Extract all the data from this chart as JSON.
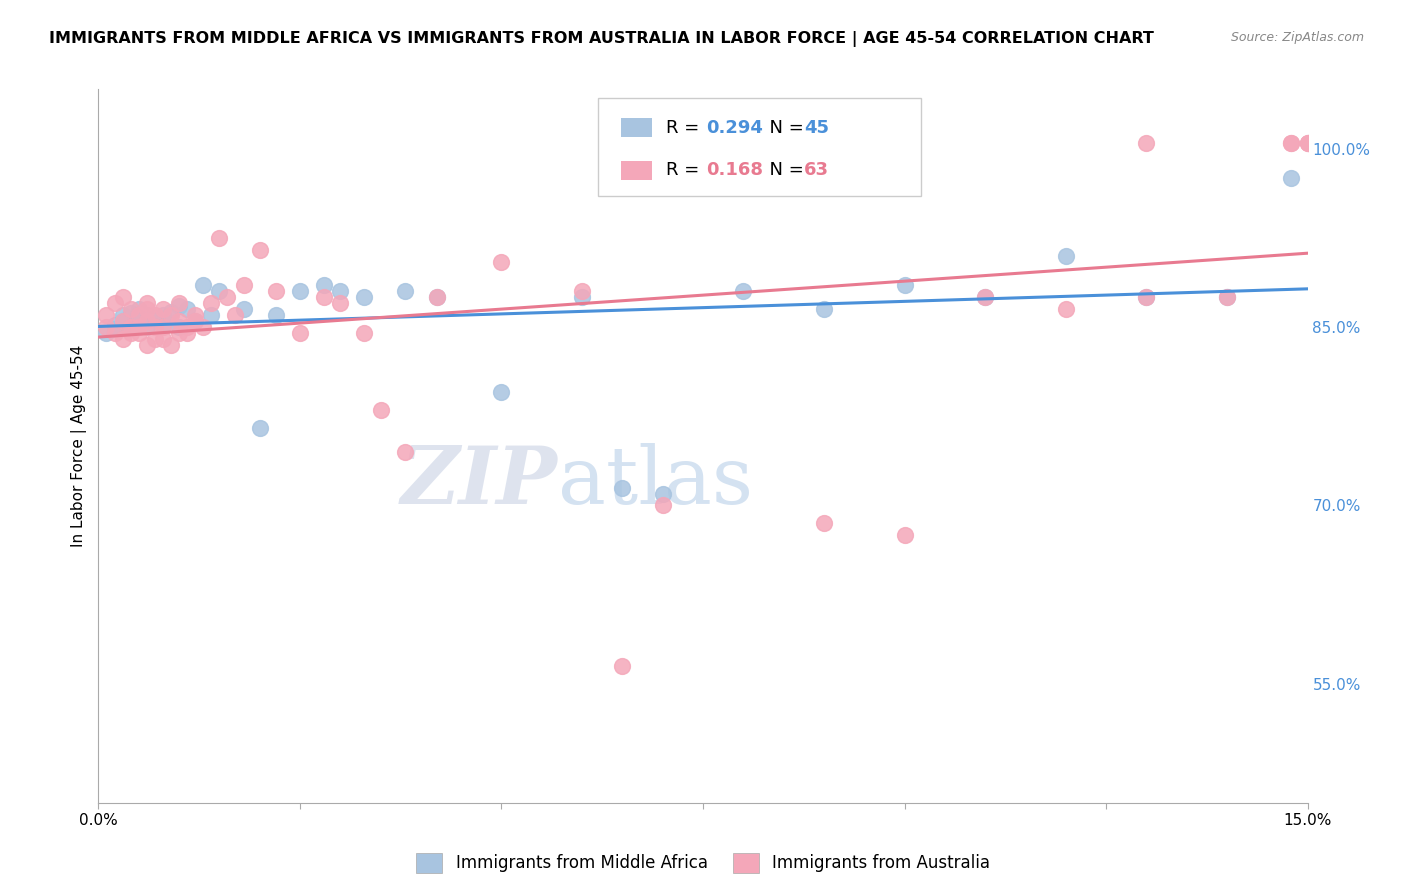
{
  "title": "IMMIGRANTS FROM MIDDLE AFRICA VS IMMIGRANTS FROM AUSTRALIA IN LABOR FORCE | AGE 45-54 CORRELATION CHART",
  "source": "Source: ZipAtlas.com",
  "ylabel": "In Labor Force | Age 45-54",
  "y_ticks": [
    55.0,
    70.0,
    85.0,
    100.0
  ],
  "y_tick_labels": [
    "55.0%",
    "70.0%",
    "85.0%",
    "100.0%"
  ],
  "x_ticks": [
    0.0,
    0.025,
    0.05,
    0.075,
    0.1,
    0.125,
    0.15
  ],
  "xlim": [
    0.0,
    0.15
  ],
  "ylim": [
    45.0,
    105.0
  ],
  "blue_color": "#a8c4e0",
  "pink_color": "#f4a7b9",
  "blue_line_color": "#4a90d9",
  "pink_line_color": "#e87a90",
  "blue_label": "Immigrants from Middle Africa",
  "pink_label": "Immigrants from Australia",
  "blue_R": "0.294",
  "blue_N": "45",
  "pink_R": "0.168",
  "pink_N": "63",
  "watermark_zip": "ZIP",
  "watermark_atlas": "atlas",
  "blue_scatter_x": [
    0.001,
    0.002,
    0.002,
    0.003,
    0.003,
    0.004,
    0.004,
    0.005,
    0.005,
    0.005,
    0.006,
    0.006,
    0.007,
    0.007,
    0.008,
    0.008,
    0.009,
    0.01,
    0.01,
    0.011,
    0.012,
    0.013,
    0.014,
    0.015,
    0.018,
    0.02,
    0.022,
    0.025,
    0.028,
    0.03,
    0.033,
    0.038,
    0.042,
    0.05,
    0.06,
    0.065,
    0.07,
    0.08,
    0.09,
    0.1,
    0.11,
    0.12,
    0.13,
    0.14,
    0.148
  ],
  "blue_scatter_y": [
    84.5,
    85.2,
    84.8,
    86.0,
    85.5,
    85.0,
    86.2,
    85.8,
    85.3,
    86.5,
    85.0,
    86.0,
    85.5,
    85.8,
    85.2,
    86.0,
    86.3,
    85.0,
    86.8,
    86.5,
    85.5,
    88.5,
    86.0,
    88.0,
    86.5,
    76.5,
    86.0,
    88.0,
    88.5,
    88.0,
    87.5,
    88.0,
    87.5,
    79.5,
    87.5,
    71.5,
    71.0,
    88.0,
    86.5,
    88.5,
    87.5,
    91.0,
    87.5,
    87.5,
    97.5
  ],
  "pink_scatter_x": [
    0.001,
    0.001,
    0.002,
    0.002,
    0.003,
    0.003,
    0.003,
    0.004,
    0.004,
    0.004,
    0.005,
    0.005,
    0.005,
    0.006,
    0.006,
    0.006,
    0.006,
    0.007,
    0.007,
    0.007,
    0.008,
    0.008,
    0.008,
    0.009,
    0.009,
    0.01,
    0.01,
    0.01,
    0.011,
    0.011,
    0.012,
    0.012,
    0.013,
    0.014,
    0.015,
    0.016,
    0.017,
    0.018,
    0.02,
    0.022,
    0.025,
    0.028,
    0.03,
    0.033,
    0.035,
    0.038,
    0.042,
    0.05,
    0.06,
    0.065,
    0.07,
    0.09,
    0.1,
    0.11,
    0.12,
    0.13,
    0.14,
    0.148,
    0.15,
    0.15,
    0.15,
    0.148,
    0.13
  ],
  "pink_scatter_y": [
    85.0,
    86.0,
    84.5,
    87.0,
    85.5,
    84.0,
    87.5,
    85.0,
    86.5,
    84.5,
    85.0,
    86.0,
    84.5,
    85.5,
    87.0,
    83.5,
    86.5,
    86.0,
    85.0,
    84.0,
    86.5,
    85.0,
    84.0,
    83.5,
    86.0,
    85.5,
    84.5,
    87.0,
    85.0,
    84.5,
    86.0,
    85.5,
    85.0,
    87.0,
    92.5,
    87.5,
    86.0,
    88.5,
    91.5,
    88.0,
    84.5,
    87.5,
    87.0,
    84.5,
    78.0,
    74.5,
    87.5,
    90.5,
    88.0,
    56.5,
    70.0,
    68.5,
    67.5,
    87.5,
    86.5,
    87.5,
    87.5,
    100.5,
    100.5,
    100.5,
    100.5,
    100.5,
    100.5
  ]
}
